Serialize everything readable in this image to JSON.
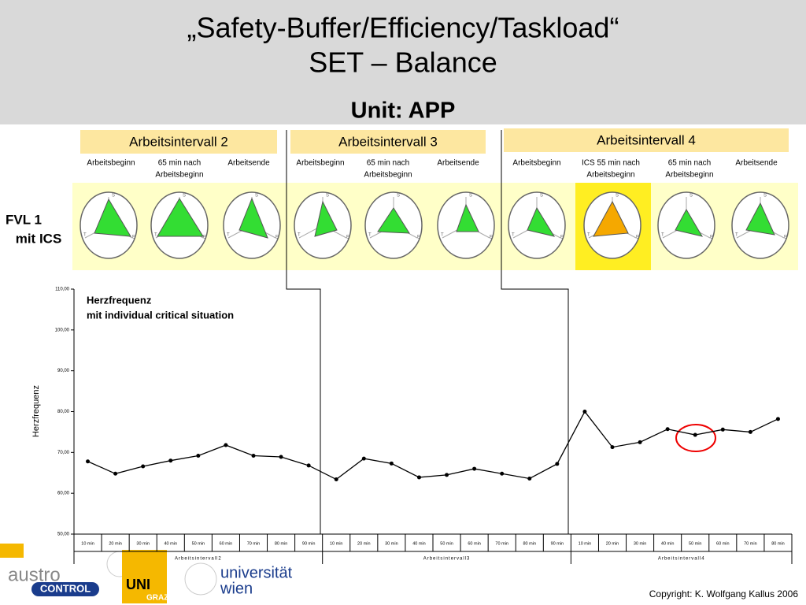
{
  "header": {
    "title_lines": [
      "„Safety-Buffer/Efficiency/Taskload“",
      "SET – Balance"
    ],
    "unit": "Unit: APP"
  },
  "intervals": [
    {
      "label": "Arbeitsintervall 2",
      "phases": [
        [
          "Arbeitsbeginn"
        ],
        [
          "65 min nach",
          "Arbeitsbeginn"
        ],
        [
          "Arbeitsende"
        ]
      ]
    },
    {
      "label": "Arbeitsintervall 3",
      "phases": [
        [
          "Arbeitsbeginn"
        ],
        [
          "65 min nach",
          "Arbeitsbeginn"
        ],
        [
          "Arbeitsende"
        ]
      ]
    },
    {
      "label": "Arbeitsintervall 4",
      "phases": [
        [
          "Arbeitsbeginn"
        ],
        [
          "ICS 55 min nach",
          "Arbeitsbeginn"
        ],
        [
          "65 min nach",
          "Arbeitsbeginn"
        ],
        [
          "Arbeitsende"
        ]
      ]
    }
  ],
  "radar_axes": [
    "S",
    "T",
    "E"
  ],
  "row_label": [
    "FVL 1",
    "mit ICS"
  ],
  "chart_data": {
    "type": "line",
    "annotation": [
      "Herzfrequenz",
      "mit individual critical situation"
    ],
    "ylabel": "Herzfrequenz",
    "categories": [
      "10 min",
      "20 min",
      "30 min",
      "40 min",
      "50 min",
      "60 min",
      "70 min",
      "80 min",
      "90 min",
      "10 min",
      "20 min",
      "30 min",
      "40 min",
      "50 min",
      "60 min",
      "70 min",
      "80 min",
      "90 min",
      "10 min",
      "20 min",
      "30 min",
      "40 min",
      "50 min",
      "60 min",
      "70 min",
      "80 min"
    ],
    "groups": [
      "Arbeitsintervall2",
      "Arbeitsintervall3",
      "Arbeitsintervall4"
    ],
    "series": [
      {
        "color": "#000000",
        "values": [
          67.8,
          64.8,
          66.6,
          68.0,
          69.2,
          71.8,
          69.2,
          68.9,
          66.8,
          63.4,
          68.5,
          67.3,
          63.9,
          64.5,
          66.0,
          64.8,
          63.6,
          67.2,
          80.0,
          71.3,
          72.5,
          75.7,
          74.3,
          75.6,
          75.0,
          78.2
        ]
      }
    ],
    "ylim": [
      50,
      110
    ],
    "yticks": [
      {
        "value": 50,
        "label": "50,00"
      },
      {
        "value": 60,
        "label": "60,00"
      },
      {
        "value": 70,
        "label": "70,00"
      },
      {
        "value": 80,
        "label": "80,00"
      },
      {
        "value": 90,
        "label": "90,00"
      },
      {
        "value": 100,
        "label": "100,00"
      },
      {
        "value": 110,
        "label": "110,00"
      }
    ]
  },
  "footer": {
    "logos": [
      "austro",
      "CONTROL",
      "UNI",
      "GRAZ",
      "universität",
      "wien"
    ],
    "copyright": "Copyright: K. Wolfgang Kallus 2006"
  }
}
